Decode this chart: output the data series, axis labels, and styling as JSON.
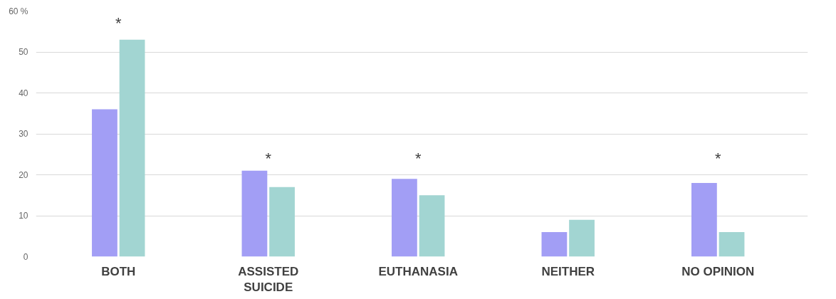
{
  "chart_data": {
    "type": "bar",
    "categories": [
      "BOTH",
      "ASSISTED SUICIDE",
      "EUTHANASIA",
      "NEITHER",
      "NO OPINION"
    ],
    "series": [
      {
        "color": "#a29ef5",
        "values": [
          36,
          21,
          19,
          6,
          18
        ]
      },
      {
        "color": "#a2d5d2",
        "values": [
          53,
          17,
          15,
          9,
          6
        ]
      }
    ],
    "ylim": [
      0,
      60
    ],
    "yticks": [
      0,
      10,
      20,
      30,
      40,
      50,
      {
        "value": 60,
        "label": "60 %"
      }
    ],
    "grid": "y",
    "annotations": [
      "*",
      "*",
      "*",
      "*"
    ]
  }
}
